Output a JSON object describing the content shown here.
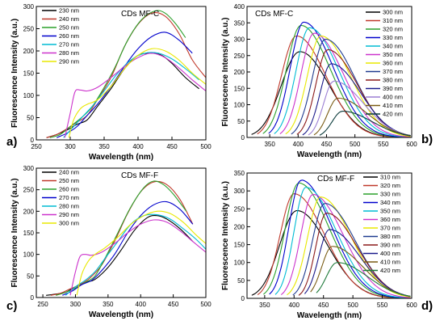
{
  "chart_data": [
    {
      "type": "line",
      "panel_label": "a)",
      "title": "CDs MF-C",
      "xlabel": "Wavelength (nm)",
      "ylabel": "Fluorescence Intensity (a.u.)",
      "xlim": [
        250,
        500
      ],
      "ylim": [
        0,
        300
      ],
      "xticks": [
        250,
        300,
        350,
        400,
        450,
        500
      ],
      "yticks": [
        0,
        50,
        100,
        150,
        200,
        250,
        300
      ],
      "legend_position": "top-left",
      "series": [
        {
          "name": "230 nm",
          "color": "#000000",
          "x": [
            265,
            280,
            295,
            310,
            325,
            340,
            360,
            380,
            400,
            420,
            435,
            450,
            470,
            490
          ],
          "y": [
            5,
            12,
            22,
            35,
            45,
            75,
            115,
            160,
            190,
            195,
            190,
            172,
            140,
            115
          ]
        },
        {
          "name": "240 nm",
          "color": "#c0392b",
          "x": [
            265,
            280,
            295,
            310,
            325,
            340,
            360,
            380,
            400,
            420,
            440,
            460,
            480,
            500
          ],
          "y": [
            5,
            12,
            25,
            40,
            55,
            90,
            140,
            210,
            260,
            285,
            278,
            240,
            180,
            140
          ]
        },
        {
          "name": "250 nm",
          "color": "#2ca02c",
          "x": [
            270,
            285,
            300,
            315,
            330,
            345,
            365,
            385,
            405,
            425,
            440,
            455,
            470
          ],
          "y": [
            5,
            12,
            30,
            48,
            70,
            105,
            160,
            225,
            270,
            290,
            285,
            262,
            230
          ]
        },
        {
          "name": "260 nm",
          "color": "#0000cc",
          "x": [
            280,
            295,
            310,
            325,
            340,
            360,
            380,
            400,
            420,
            440,
            460,
            480
          ],
          "y": [
            5,
            15,
            30,
            55,
            80,
            120,
            165,
            205,
            232,
            242,
            225,
            195
          ]
        },
        {
          "name": "270 nm",
          "color": "#00bcd4",
          "x": [
            290,
            305,
            320,
            335,
            350,
            370,
            390,
            410,
            430,
            450,
            470,
            490
          ],
          "y": [
            5,
            30,
            55,
            80,
            110,
            150,
            180,
            195,
            195,
            182,
            160,
            135
          ]
        },
        {
          "name": "280 nm",
          "color": "#cc33cc",
          "x": [
            292,
            300,
            307,
            315,
            325,
            340,
            360,
            380,
            400,
            420,
            440,
            460,
            480,
            500
          ],
          "y": [
            5,
            60,
            108,
            112,
            110,
            118,
            140,
            165,
            185,
            195,
            185,
            162,
            135,
            110
          ]
        },
        {
          "name": "290 nm",
          "color": "#e8e800",
          "x": [
            298,
            305,
            315,
            325,
            340,
            360,
            380,
            400,
            420,
            440,
            460,
            480,
            500
          ],
          "y": [
            5,
            45,
            70,
            80,
            90,
            120,
            160,
            190,
            205,
            200,
            180,
            150,
            125
          ]
        }
      ]
    },
    {
      "type": "line",
      "panel_label": "b)",
      "title": "CDs MF-C",
      "xlabel": "Wavelength (nm)",
      "ylabel": "Fluorescence Intensity (a.u.)",
      "xlim": [
        310,
        600
      ],
      "ylim": [
        0,
        400
      ],
      "xticks": [
        350,
        400,
        450,
        500,
        550,
        600
      ],
      "yticks": [
        0,
        50,
        100,
        150,
        200,
        250,
        300,
        350,
        400
      ],
      "legend_position": "top-right",
      "series": [
        {
          "name": "300 nm",
          "color": "#000000",
          "peak_x": 403,
          "peak_y": 262
        },
        {
          "name": "310 nm",
          "color": "#c0392b",
          "peak_x": 397,
          "peak_y": 310
        },
        {
          "name": "320 nm",
          "color": "#2ca02c",
          "peak_x": 405,
          "peak_y": 342
        },
        {
          "name": "330 nm",
          "color": "#0000cc",
          "peak_x": 410,
          "peak_y": 352
        },
        {
          "name": "340 nm",
          "color": "#00bcd4",
          "peak_x": 420,
          "peak_y": 335
        },
        {
          "name": "350 nm",
          "color": "#cc33cc",
          "peak_x": 428,
          "peak_y": 318
        },
        {
          "name": "360 nm",
          "color": "#e8e800",
          "peak_x": 440,
          "peak_y": 310
        },
        {
          "name": "370 nm",
          "color": "#1f3b8f",
          "peak_x": 448,
          "peak_y": 300
        },
        {
          "name": "380 nm",
          "color": "#8b1a1a",
          "peak_x": 452,
          "peak_y": 268
        },
        {
          "name": "390 nm",
          "color": "#1a1a8b",
          "peak_x": 458,
          "peak_y": 225
        },
        {
          "name": "400 nm",
          "color": "#9b7fd4",
          "peak_x": 463,
          "peak_y": 172
        },
        {
          "name": "410 nm",
          "color": "#7a5c14",
          "peak_x": 470,
          "peak_y": 120
        },
        {
          "name": "420 nm",
          "color": "#0a3a3a",
          "peak_x": 478,
          "peak_y": 80
        }
      ]
    },
    {
      "type": "line",
      "panel_label": "c)",
      "title": "CDs MF-F",
      "xlabel": "Wavelength (nm)",
      "ylabel": "Fluorescence Intensity (a.u.)",
      "xlim": [
        240,
        500
      ],
      "ylim": [
        0,
        300
      ],
      "xticks": [
        250,
        300,
        350,
        400,
        450,
        500
      ],
      "yticks": [
        0,
        50,
        100,
        150,
        200,
        250,
        300
      ],
      "legend_position": "top-left",
      "series": [
        {
          "name": "240 nm",
          "color": "#000000",
          "x": [
            255,
            270,
            285,
            300,
            315,
            330,
            350,
            370,
            390,
            410,
            425,
            440,
            460,
            480
          ],
          "y": [
            5,
            8,
            12,
            25,
            35,
            42,
            70,
            110,
            155,
            185,
            190,
            182,
            160,
            130
          ]
        },
        {
          "name": "250 nm",
          "color": "#c0392b",
          "x": [
            262,
            277,
            292,
            307,
            322,
            340,
            360,
            380,
            400,
            420,
            440,
            460,
            480
          ],
          "y": [
            5,
            10,
            20,
            30,
            45,
            75,
            130,
            195,
            245,
            268,
            262,
            228,
            170
          ]
        },
        {
          "name": "260 nm",
          "color": "#2ca02c",
          "x": [
            270,
            285,
            300,
            315,
            330,
            345,
            365,
            385,
            405,
            420,
            435,
            450,
            470
          ],
          "y": [
            5,
            12,
            22,
            35,
            50,
            90,
            150,
            210,
            255,
            270,
            262,
            240,
            200
          ]
        },
        {
          "name": "270 nm",
          "color": "#0000cc",
          "x": [
            280,
            295,
            310,
            325,
            340,
            360,
            380,
            400,
            420,
            440,
            460,
            480
          ],
          "y": [
            5,
            15,
            30,
            40,
            62,
            100,
            150,
            190,
            215,
            222,
            205,
            170
          ]
        },
        {
          "name": "280 nm",
          "color": "#00bcd4",
          "x": [
            285,
            300,
            315,
            330,
            345,
            365,
            385,
            405,
            425,
            445,
            465,
            485,
            500
          ],
          "y": [
            5,
            25,
            40,
            60,
            90,
            130,
            170,
            190,
            192,
            182,
            160,
            135,
            112
          ]
        },
        {
          "name": "290 nm",
          "color": "#cc33cc",
          "x": [
            292,
            300,
            307,
            315,
            325,
            340,
            360,
            380,
            400,
            420,
            440,
            460,
            480,
            500
          ],
          "y": [
            5,
            60,
            95,
            100,
            98,
            105,
            125,
            150,
            170,
            180,
            175,
            155,
            130,
            105
          ]
        },
        {
          "name": "300 nm",
          "color": "#e8e800",
          "x": [
            302,
            310,
            320,
            330,
            345,
            365,
            385,
            405,
            425,
            445,
            465,
            485,
            500
          ],
          "y": [
            5,
            55,
            85,
            100,
            115,
            140,
            170,
            190,
            200,
            195,
            175,
            145,
            125
          ]
        }
      ]
    },
    {
      "type": "line",
      "panel_label": "d)",
      "title": "CDs MF-F",
      "xlabel": "Wavelength (nm)",
      "ylabel": "Fluorescence Intensity (a.u.)",
      "xlim": [
        320,
        600
      ],
      "ylim": [
        0,
        350
      ],
      "xticks": [
        350,
        400,
        450,
        500,
        550,
        600
      ],
      "yticks": [
        0,
        50,
        100,
        150,
        200,
        250,
        300,
        350
      ],
      "legend_position": "top-right",
      "series": [
        {
          "name": "310 nm",
          "color": "#000000",
          "peak_x": 405,
          "peak_y": 245
        },
        {
          "name": "320 nm",
          "color": "#c0392b",
          "peak_x": 400,
          "peak_y": 292
        },
        {
          "name": "330 nm",
          "color": "#2ca02c",
          "peak_x": 408,
          "peak_y": 322
        },
        {
          "name": "340 nm",
          "color": "#0000cc",
          "peak_x": 412,
          "peak_y": 330
        },
        {
          "name": "350 nm",
          "color": "#00bcd4",
          "peak_x": 420,
          "peak_y": 310
        },
        {
          "name": "360 nm",
          "color": "#cc33cc",
          "peak_x": 432,
          "peak_y": 290
        },
        {
          "name": "370 nm",
          "color": "#e8e800",
          "peak_x": 445,
          "peak_y": 283
        },
        {
          "name": "380 nm",
          "color": "#1f3b8f",
          "peak_x": 452,
          "peak_y": 265
        },
        {
          "name": "390 nm",
          "color": "#8b1a1a",
          "peak_x": 455,
          "peak_y": 238
        },
        {
          "name": "400 nm",
          "color": "#1a1a8b",
          "peak_x": 460,
          "peak_y": 192
        },
        {
          "name": "410 nm",
          "color": "#7a5c14",
          "peak_x": 465,
          "peak_y": 145
        },
        {
          "name": "420 nm",
          "color": "#1f7a3a",
          "peak_x": 473,
          "peak_y": 100
        }
      ]
    }
  ]
}
